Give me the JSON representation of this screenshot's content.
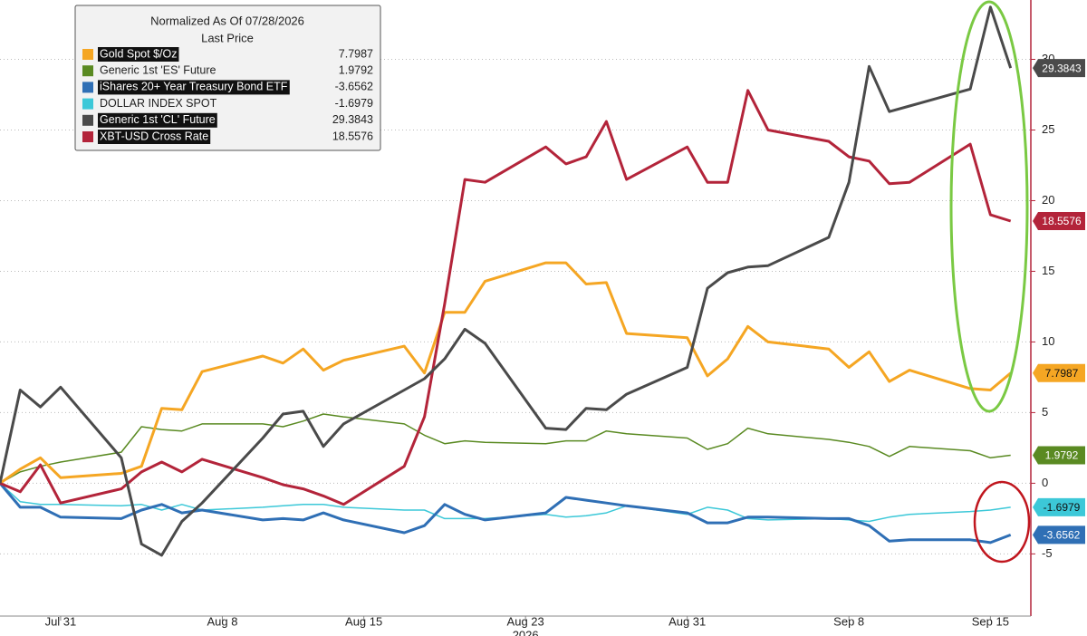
{
  "chart_data": {
    "type": "line",
    "legend_title": "Normalized As Of 07/28/2026",
    "legend_subtitle": "Last Price",
    "legend_position": "upper left",
    "x_year_label": "2026",
    "x": [
      "2026-07-28",
      "2026-07-29",
      "2026-07-30",
      "2026-07-31",
      "2026-08-03",
      "2026-08-04",
      "2026-08-05",
      "2026-08-06",
      "2026-08-07",
      "2026-08-10",
      "2026-08-11",
      "2026-08-12",
      "2026-08-13",
      "2026-08-14",
      "2026-08-17",
      "2026-08-18",
      "2026-08-19",
      "2026-08-20",
      "2026-08-21",
      "2026-08-24",
      "2026-08-25",
      "2026-08-26",
      "2026-08-27",
      "2026-08-28",
      "2026-08-31",
      "2026-09-01",
      "2026-09-02",
      "2026-09-03",
      "2026-09-04",
      "2026-09-07",
      "2026-09-08",
      "2026-09-09",
      "2026-09-10",
      "2026-09-11",
      "2026-09-14",
      "2026-09-15",
      "2026-09-16"
    ],
    "xlim": [
      "2026-07-28",
      "2026-09-17"
    ],
    "xticks": [
      {
        "value": "2026-07-31",
        "label": "Jul 31"
      },
      {
        "value": "2026-08-08",
        "label": "Aug 8"
      },
      {
        "value": "2026-08-15",
        "label": "Aug 15"
      },
      {
        "value": "2026-08-23",
        "label": "Aug 23"
      },
      {
        "value": "2026-08-31",
        "label": "Aug 31"
      },
      {
        "value": "2026-09-08",
        "label": "Sep 8"
      },
      {
        "value": "2026-09-15",
        "label": "Sep 15"
      }
    ],
    "ylim": [
      -9.4,
      34.2
    ],
    "yticks": [
      -5,
      0,
      5,
      10,
      15,
      20,
      25,
      30
    ],
    "grid": true,
    "series": [
      {
        "name": "Gold Spot $/Oz",
        "color": "#f5a623",
        "values": [
          0,
          1.0,
          1.8,
          0.4,
          0.7,
          1.2,
          5.3,
          5.2,
          7.9,
          9.0,
          8.5,
          9.5,
          8.0,
          8.7,
          9.7,
          7.8,
          12.1,
          12.1,
          14.3,
          15.6,
          15.6,
          14.1,
          14.2,
          10.6,
          10.3,
          7.6,
          8.8,
          11.1,
          10.0,
          9.5,
          8.2,
          9.3,
          7.2,
          8.0,
          6.7,
          6.6,
          7.7987
        ]
      },
      {
        "name": "Generic 1st 'ES' Future",
        "color": "#5a8a22",
        "values": [
          0,
          0.8,
          1.2,
          1.5,
          2.2,
          4.0,
          3.8,
          3.7,
          4.2,
          4.2,
          4.0,
          4.4,
          4.9,
          4.7,
          4.2,
          3.4,
          2.8,
          3.0,
          2.9,
          2.8,
          3.0,
          3.0,
          3.7,
          3.5,
          3.2,
          2.4,
          2.8,
          3.9,
          3.5,
          3.1,
          2.9,
          2.6,
          1.9,
          2.6,
          2.3,
          1.8,
          1.9792
        ]
      },
      {
        "name": "iShares 20+ Year Treasury Bond ETF",
        "color": "#2f6fb5",
        "values": [
          0,
          -1.7,
          -1.7,
          -2.4,
          -2.5,
          -1.9,
          -1.5,
          -2.1,
          -1.9,
          -2.6,
          -2.5,
          -2.6,
          -2.1,
          -2.6,
          -3.5,
          -3.0,
          -1.5,
          -2.2,
          -2.6,
          -2.1,
          -1.0,
          -1.2,
          -1.4,
          -1.6,
          -2.1,
          -2.8,
          -2.8,
          -2.4,
          -2.4,
          -2.5,
          -2.5,
          -3.0,
          -4.1,
          -4.0,
          -4.0,
          -4.2,
          -3.6562
        ]
      },
      {
        "name": "DOLLAR INDEX SPOT",
        "color": "#3cc8d8",
        "values": [
          0,
          -1.3,
          -1.5,
          -1.5,
          -1.6,
          -1.5,
          -1.9,
          -1.5,
          -1.9,
          -1.7,
          -1.6,
          -1.5,
          -1.5,
          -1.7,
          -1.9,
          -1.9,
          -2.5,
          -2.5,
          -2.5,
          -2.2,
          -2.4,
          -2.3,
          -2.1,
          -1.6,
          -2.2,
          -1.7,
          -1.9,
          -2.5,
          -2.6,
          -2.5,
          -2.6,
          -2.7,
          -2.4,
          -2.2,
          -2.0,
          -1.9,
          -1.6979
        ]
      },
      {
        "name": "Generic 1st 'CL' Future",
        "color": "#4a4a4a",
        "values": [
          0,
          6.6,
          5.4,
          6.8,
          1.8,
          -4.3,
          -5.1,
          -2.7,
          -1.4,
          3.2,
          4.9,
          5.1,
          2.6,
          4.2,
          6.6,
          7.4,
          8.8,
          10.9,
          9.9,
          3.9,
          3.8,
          5.3,
          5.2,
          6.3,
          8.2,
          13.8,
          14.9,
          15.3,
          15.4,
          17.4,
          21.3,
          29.5,
          26.3,
          26.7,
          27.9,
          33.7,
          29.3843
        ]
      },
      {
        "name": "XBT-USD Cross Rate",
        "color": "#b3243a",
        "values": [
          0,
          -0.6,
          1.3,
          -1.4,
          -0.4,
          0.8,
          1.5,
          0.8,
          1.7,
          0.4,
          -0.1,
          -0.4,
          -0.9,
          -1.5,
          1.2,
          4.7,
          12.7,
          21.5,
          21.3,
          23.8,
          22.6,
          23.1,
          25.6,
          21.5,
          23.8,
          21.3,
          21.3,
          27.8,
          25.0,
          24.2,
          23.1,
          22.8,
          21.2,
          21.3,
          24.0,
          19.0,
          18.5576
        ]
      }
    ]
  }
}
